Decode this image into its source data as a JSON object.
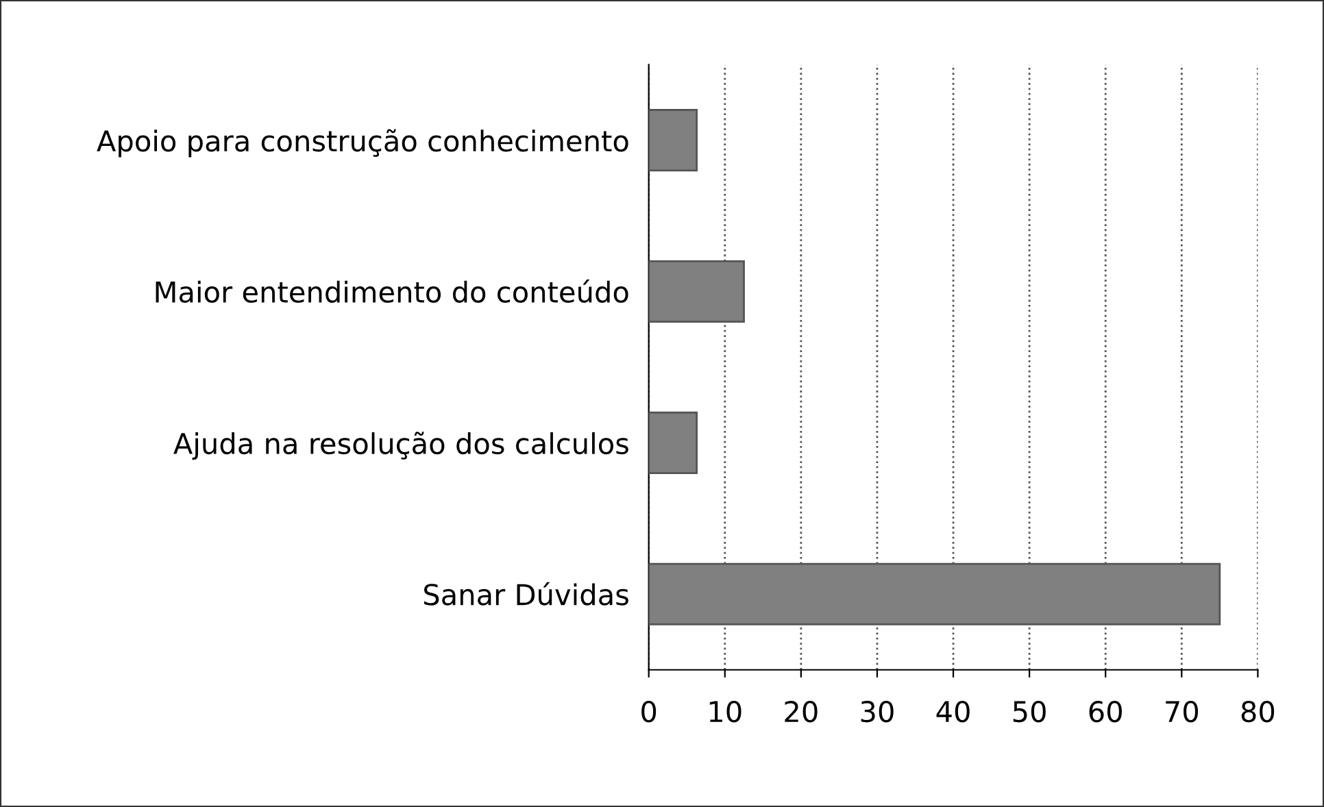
{
  "chart_data": {
    "type": "bar",
    "orientation": "horizontal",
    "categories": [
      "Apoio para construção conhecimento",
      "Maior entendimento do conteúdo",
      "Ajuda na resolução dos calculos",
      "Sanar Dúvidas"
    ],
    "values": [
      6.3,
      12.5,
      6.3,
      75
    ],
    "color": "#808080",
    "xlim": [
      0,
      80
    ],
    "xticks": [
      0,
      10,
      20,
      30,
      40,
      50,
      60,
      70,
      80
    ],
    "grid": "x",
    "legend": false
  }
}
